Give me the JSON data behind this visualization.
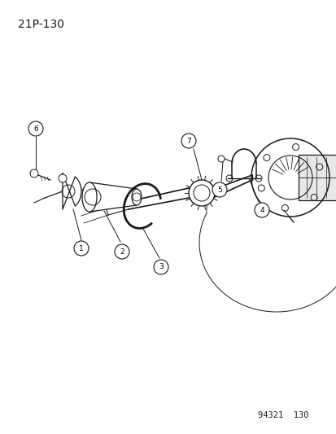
{
  "background_color": "#ffffff",
  "page_label": "21P-130",
  "doc_number": "94321  130",
  "line_color": "#1a1a1a",
  "title_fontsize": 10,
  "doc_fontsize": 7.5
}
